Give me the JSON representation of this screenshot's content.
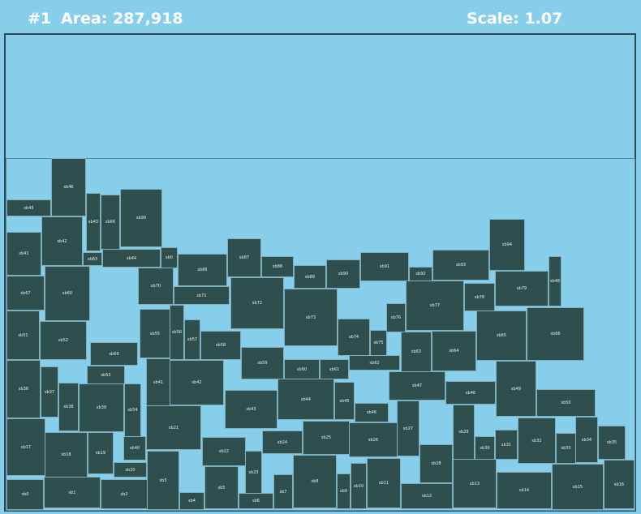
{
  "header": {
    "index": "#1",
    "area": "Area: 287,918",
    "scale": "Scale: 1.07"
  },
  "colors": {
    "background": "#87CEEB",
    "box": "#2F4F4F",
    "text": "#FFFFFF"
  },
  "boxes": [
    {
      "id": "sb46"
    },
    {
      "id": "sb45"
    },
    {
      "id": "sb43"
    },
    {
      "id": "sb66"
    },
    {
      "id": "sb99"
    },
    {
      "id": "sb41"
    },
    {
      "id": "sb42"
    },
    {
      "id": "sb63"
    },
    {
      "id": "sb44"
    },
    {
      "id": "sb0"
    },
    {
      "id": "sb86"
    },
    {
      "id": "sb87"
    },
    {
      "id": "sb88"
    },
    {
      "id": "sb89"
    },
    {
      "id": "sb90"
    },
    {
      "id": "sb91"
    },
    {
      "id": "sb92"
    },
    {
      "id": "sb93"
    },
    {
      "id": "sb94"
    },
    {
      "id": "sb48"
    },
    {
      "id": "sb67"
    },
    {
      "id": "sb60"
    },
    {
      "id": "sb70"
    },
    {
      "id": "sb71"
    },
    {
      "id": "sb72"
    },
    {
      "id": "sb73"
    },
    {
      "id": "sb76"
    },
    {
      "id": "sb77"
    },
    {
      "id": "sb78"
    },
    {
      "id": "sb79"
    },
    {
      "id": "sb51"
    },
    {
      "id": "sb52"
    },
    {
      "id": "sb55"
    },
    {
      "id": "sb56"
    },
    {
      "id": "sb57"
    },
    {
      "id": "sb58"
    },
    {
      "id": "sb74"
    },
    {
      "id": "sb75"
    },
    {
      "id": "sb63"
    },
    {
      "id": "sb64"
    },
    {
      "id": "sb65"
    },
    {
      "id": "sb66"
    },
    {
      "id": "sb69"
    },
    {
      "id": "sb59"
    },
    {
      "id": "sb60"
    },
    {
      "id": "sb61"
    },
    {
      "id": "sb62"
    },
    {
      "id": "sb36"
    },
    {
      "id": "sb37"
    },
    {
      "id": "sb53"
    },
    {
      "id": "sb38"
    },
    {
      "id": "sb39"
    },
    {
      "id": "sb41"
    },
    {
      "id": "sb42"
    },
    {
      "id": "sb47"
    },
    {
      "id": "sb46"
    },
    {
      "id": "sb49"
    },
    {
      "id": "sb54"
    },
    {
      "id": "sb43"
    },
    {
      "id": "sb44"
    },
    {
      "id": "sb45"
    },
    {
      "id": "sb46"
    },
    {
      "id": "sb27"
    },
    {
      "id": "sb50"
    },
    {
      "id": "sb17"
    },
    {
      "id": "sb18"
    },
    {
      "id": "sb19"
    },
    {
      "id": "sb40"
    },
    {
      "id": "sb21"
    },
    {
      "id": "sb22"
    },
    {
      "id": "sb24"
    },
    {
      "id": "sb25"
    },
    {
      "id": "sb26"
    },
    {
      "id": "sb29"
    },
    {
      "id": "sb30"
    },
    {
      "id": "sb31"
    },
    {
      "id": "sb32"
    },
    {
      "id": "sb33"
    },
    {
      "id": "sb34"
    },
    {
      "id": "sb35"
    },
    {
      "id": "sb20"
    },
    {
      "id": "sb23"
    },
    {
      "id": "sb28"
    },
    {
      "id": "sb3"
    },
    {
      "id": "sb0"
    },
    {
      "id": "sb1"
    },
    {
      "id": "sb2"
    },
    {
      "id": "sb4"
    },
    {
      "id": "sb5"
    },
    {
      "id": "sb6"
    },
    {
      "id": "sb7"
    },
    {
      "id": "sb8"
    },
    {
      "id": "sb9"
    },
    {
      "id": "sb10"
    },
    {
      "id": "sb11"
    },
    {
      "id": "sb12"
    },
    {
      "id": "sb13"
    },
    {
      "id": "sb14"
    },
    {
      "id": "sb15"
    },
    {
      "id": "sb16"
    }
  ]
}
